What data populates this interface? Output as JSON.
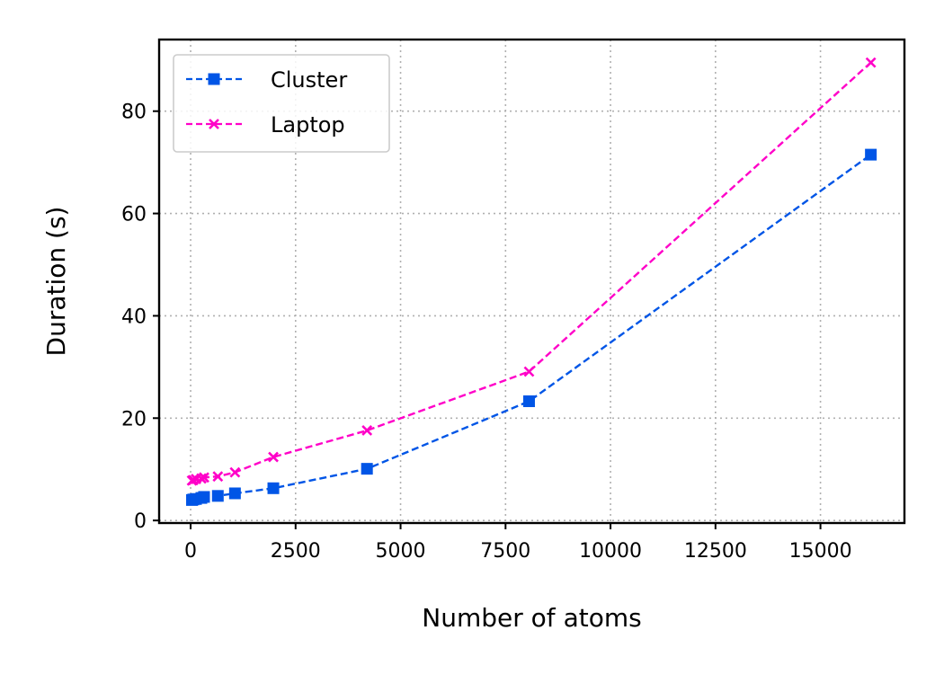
{
  "chart_data": {
    "type": "line",
    "title": "",
    "xlabel": "Number of atoms",
    "ylabel": "Duration (s)",
    "xlim": [
      -750,
      17000
    ],
    "ylim": [
      -0.5,
      94
    ],
    "x_ticks": [
      0,
      2500,
      5000,
      7500,
      10000,
      12500,
      15000
    ],
    "x_tick_labels": [
      "0",
      "2500",
      "5000",
      "7500",
      "10000",
      "12500",
      "15000"
    ],
    "y_ticks": [
      0,
      20,
      40,
      60,
      80
    ],
    "y_tick_labels": [
      "0",
      "20",
      "40",
      "60",
      "80"
    ],
    "grid": true,
    "legend_position": "top-left",
    "series": [
      {
        "name": "Cluster",
        "color": "#0055e6",
        "marker": "square",
        "linestyle": "dashed",
        "x": [
          32,
          64,
          128,
          256,
          320,
          648,
          1056,
          1970,
          4200,
          8060,
          16200
        ],
        "y": [
          4.0,
          4.1,
          4.2,
          4.4,
          4.6,
          4.8,
          5.3,
          6.3,
          10.1,
          23.3,
          71.5
        ]
      },
      {
        "name": "Laptop",
        "color": "#ff00c8",
        "marker": "x",
        "linestyle": "dashed",
        "x": [
          32,
          64,
          128,
          256,
          320,
          648,
          1056,
          1970,
          4200,
          8060,
          16200
        ],
        "y": [
          7.8,
          7.9,
          8.1,
          8.2,
          8.4,
          8.6,
          9.4,
          12.4,
          17.6,
          29.1,
          89.5
        ]
      }
    ]
  }
}
